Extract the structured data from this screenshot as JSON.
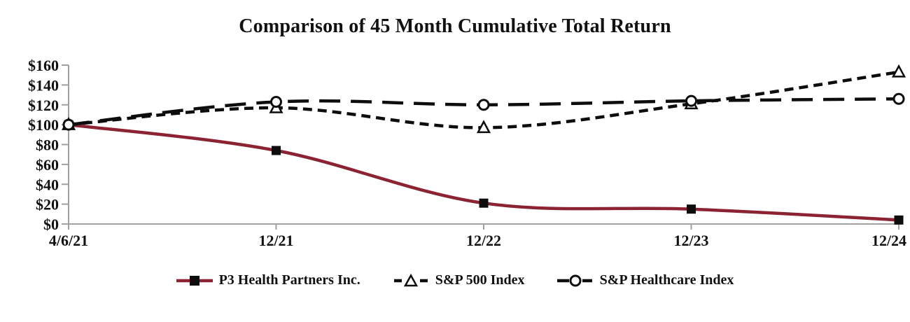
{
  "chart_data": {
    "type": "line",
    "title": "Comparison of 45 Month Cumulative Total Return",
    "categories": [
      "4/6/21",
      "12/21",
      "12/22",
      "12/23",
      "12/24"
    ],
    "series": [
      {
        "name": "P3 Health Partners Inc.",
        "values": [
          100,
          74,
          21,
          15,
          4
        ],
        "color": "#8B2332",
        "line_style": "solid",
        "marker": "filled-square",
        "marker_color": "#0d0d0d"
      },
      {
        "name": "S&P 500 Index",
        "values": [
          100,
          117,
          97,
          121,
          153
        ],
        "color": "#0d0d0d",
        "line_style": "short-dash",
        "marker": "open-triangle",
        "marker_color": "#ffffff"
      },
      {
        "name": "S&P Healthcare Index",
        "values": [
          100,
          123,
          120,
          124,
          126
        ],
        "color": "#0d0d0d",
        "line_style": "long-dash",
        "marker": "open-circle",
        "marker_color": "#ffffff"
      }
    ],
    "xlabel": "",
    "ylabel": "",
    "ylim": [
      0,
      160
    ],
    "ytick_step": 20,
    "ytick_labels": [
      "$0",
      "$20",
      "$40",
      "$60",
      "$80",
      "$100",
      "$120",
      "$140",
      "$160"
    ],
    "grid": "off",
    "smooth_lines": true,
    "legend_position": "bottom",
    "axis_color": "#A0A0A0",
    "text_color": "#111111",
    "background_color": "#ffffff"
  }
}
